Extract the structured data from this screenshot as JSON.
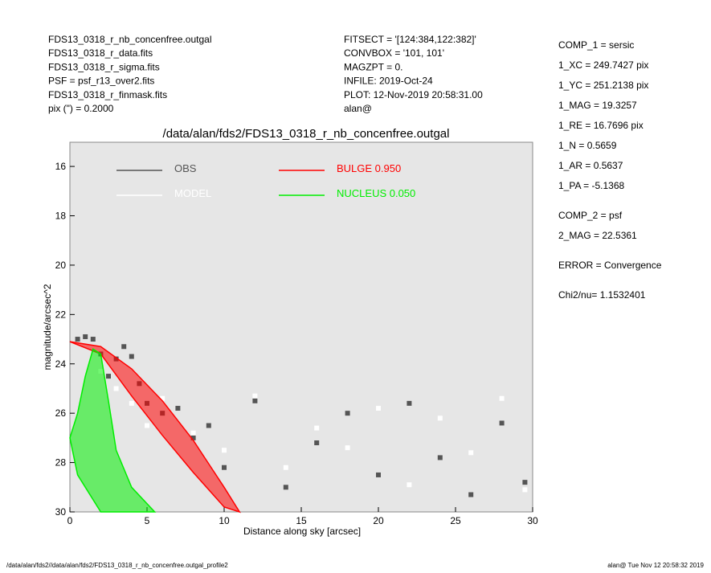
{
  "header": {
    "left": [
      "FDS13_0318_r_nb_concenfree.outgal",
      "FDS13_0318_r_data.fits",
      "FDS13_0318_r_sigma.fits",
      "PSF    = psf_r13_over2.fits",
      "FDS13_0318_r_finmask.fits",
      "pix (\") =  0.2000"
    ],
    "middle": [
      "FITSECT = '[124:384,122:382]'",
      "CONVBOX = '101, 101'",
      "MAGZPT  =                0.",
      "INFILE: 2019-Oct-24",
      "PLOT: 12-Nov-2019 20:58:31.00",
      "alan@"
    ],
    "right": [
      "COMP_1  = sersic",
      "1_XC    = 249.7427 pix",
      "1_YC    = 251.2138 pix",
      "1_MAG   = 19.3257",
      "1_RE    = 16.7696 pix",
      "1_N     = 0.5659",
      "1_AR    = 0.5637",
      "1_PA    = -5.1368",
      "COMP_2  = psf",
      "2_MAG   = 22.5361",
      "ERROR   = Convergence",
      "Chi2/nu=      1.1532401"
    ]
  },
  "footer": {
    "left": "/data/alan/fds2//data/alan/fds2/FDS13_0318_r_nb_concenfree.outgal_profile2",
    "right": "alan@  Tue Nov 12 20:58:32 2019"
  },
  "chart_data": {
    "type": "scatter",
    "title": "/data/alan/fds2/FDS13_0318_r_nb_concenfree.outgal",
    "x_label": "Distance along sky [arcsec]",
    "y_label": "magnitude/arcsec^2",
    "xlim": [
      0,
      30
    ],
    "xticks": [
      0,
      5,
      10,
      15,
      20,
      25,
      30
    ],
    "ylim": [
      15.02,
      30
    ],
    "y_inverted": true,
    "yticks": [
      16,
      18,
      20,
      22,
      24,
      26,
      28,
      30
    ],
    "series": [
      {
        "name": "OBS",
        "color": "#555555",
        "kind": "points",
        "x": [
          0.5,
          1,
          1.5,
          2,
          2.5,
          3,
          3.5,
          4,
          4.5,
          5,
          6,
          7,
          8,
          9,
          10,
          12,
          14,
          16,
          18,
          20,
          22,
          24,
          26,
          28,
          29.5
        ],
        "values": [
          23.0,
          22.9,
          23.0,
          23.6,
          24.5,
          23.8,
          23.3,
          23.7,
          24.8,
          25.6,
          26.0,
          25.8,
          27.0,
          26.5,
          28.2,
          25.5,
          29.0,
          27.2,
          26.0,
          28.5,
          25.6,
          27.8,
          29.3,
          26.4,
          28.8
        ]
      },
      {
        "name": "MODEL",
        "color": "#ffffff",
        "kind": "points",
        "x": [
          2,
          3,
          4,
          5,
          6,
          8,
          10,
          12,
          14,
          16,
          18,
          20,
          22,
          24,
          26,
          28,
          29.5
        ],
        "values": [
          24.3,
          25.0,
          25.6,
          26.5,
          25.4,
          26.8,
          27.5,
          25.3,
          28.2,
          26.6,
          27.4,
          25.8,
          28.9,
          26.2,
          27.6,
          25.4,
          29.1
        ]
      },
      {
        "name": "BULGE  0.950",
        "color": "#ff0000",
        "kind": "region",
        "x": [
          0,
          2,
          4,
          6,
          8,
          10,
          11,
          10,
          8,
          6,
          4,
          2,
          0
        ],
        "values": [
          23.1,
          23.6,
          25.3,
          26.9,
          28.4,
          29.8,
          30,
          29.0,
          27.1,
          25.5,
          24.2,
          23.3,
          23.1
        ]
      },
      {
        "name": "NUCLEUS  0.050",
        "color": "#00ee00",
        "kind": "region",
        "x": [
          0,
          0.5,
          1,
          1.5,
          2,
          2.5,
          3,
          4,
          5.5,
          2,
          0.5,
          0
        ],
        "values": [
          27,
          26,
          24.5,
          23.4,
          23.6,
          25.5,
          27.5,
          29,
          30,
          30,
          28.5,
          27
        ]
      }
    ]
  }
}
